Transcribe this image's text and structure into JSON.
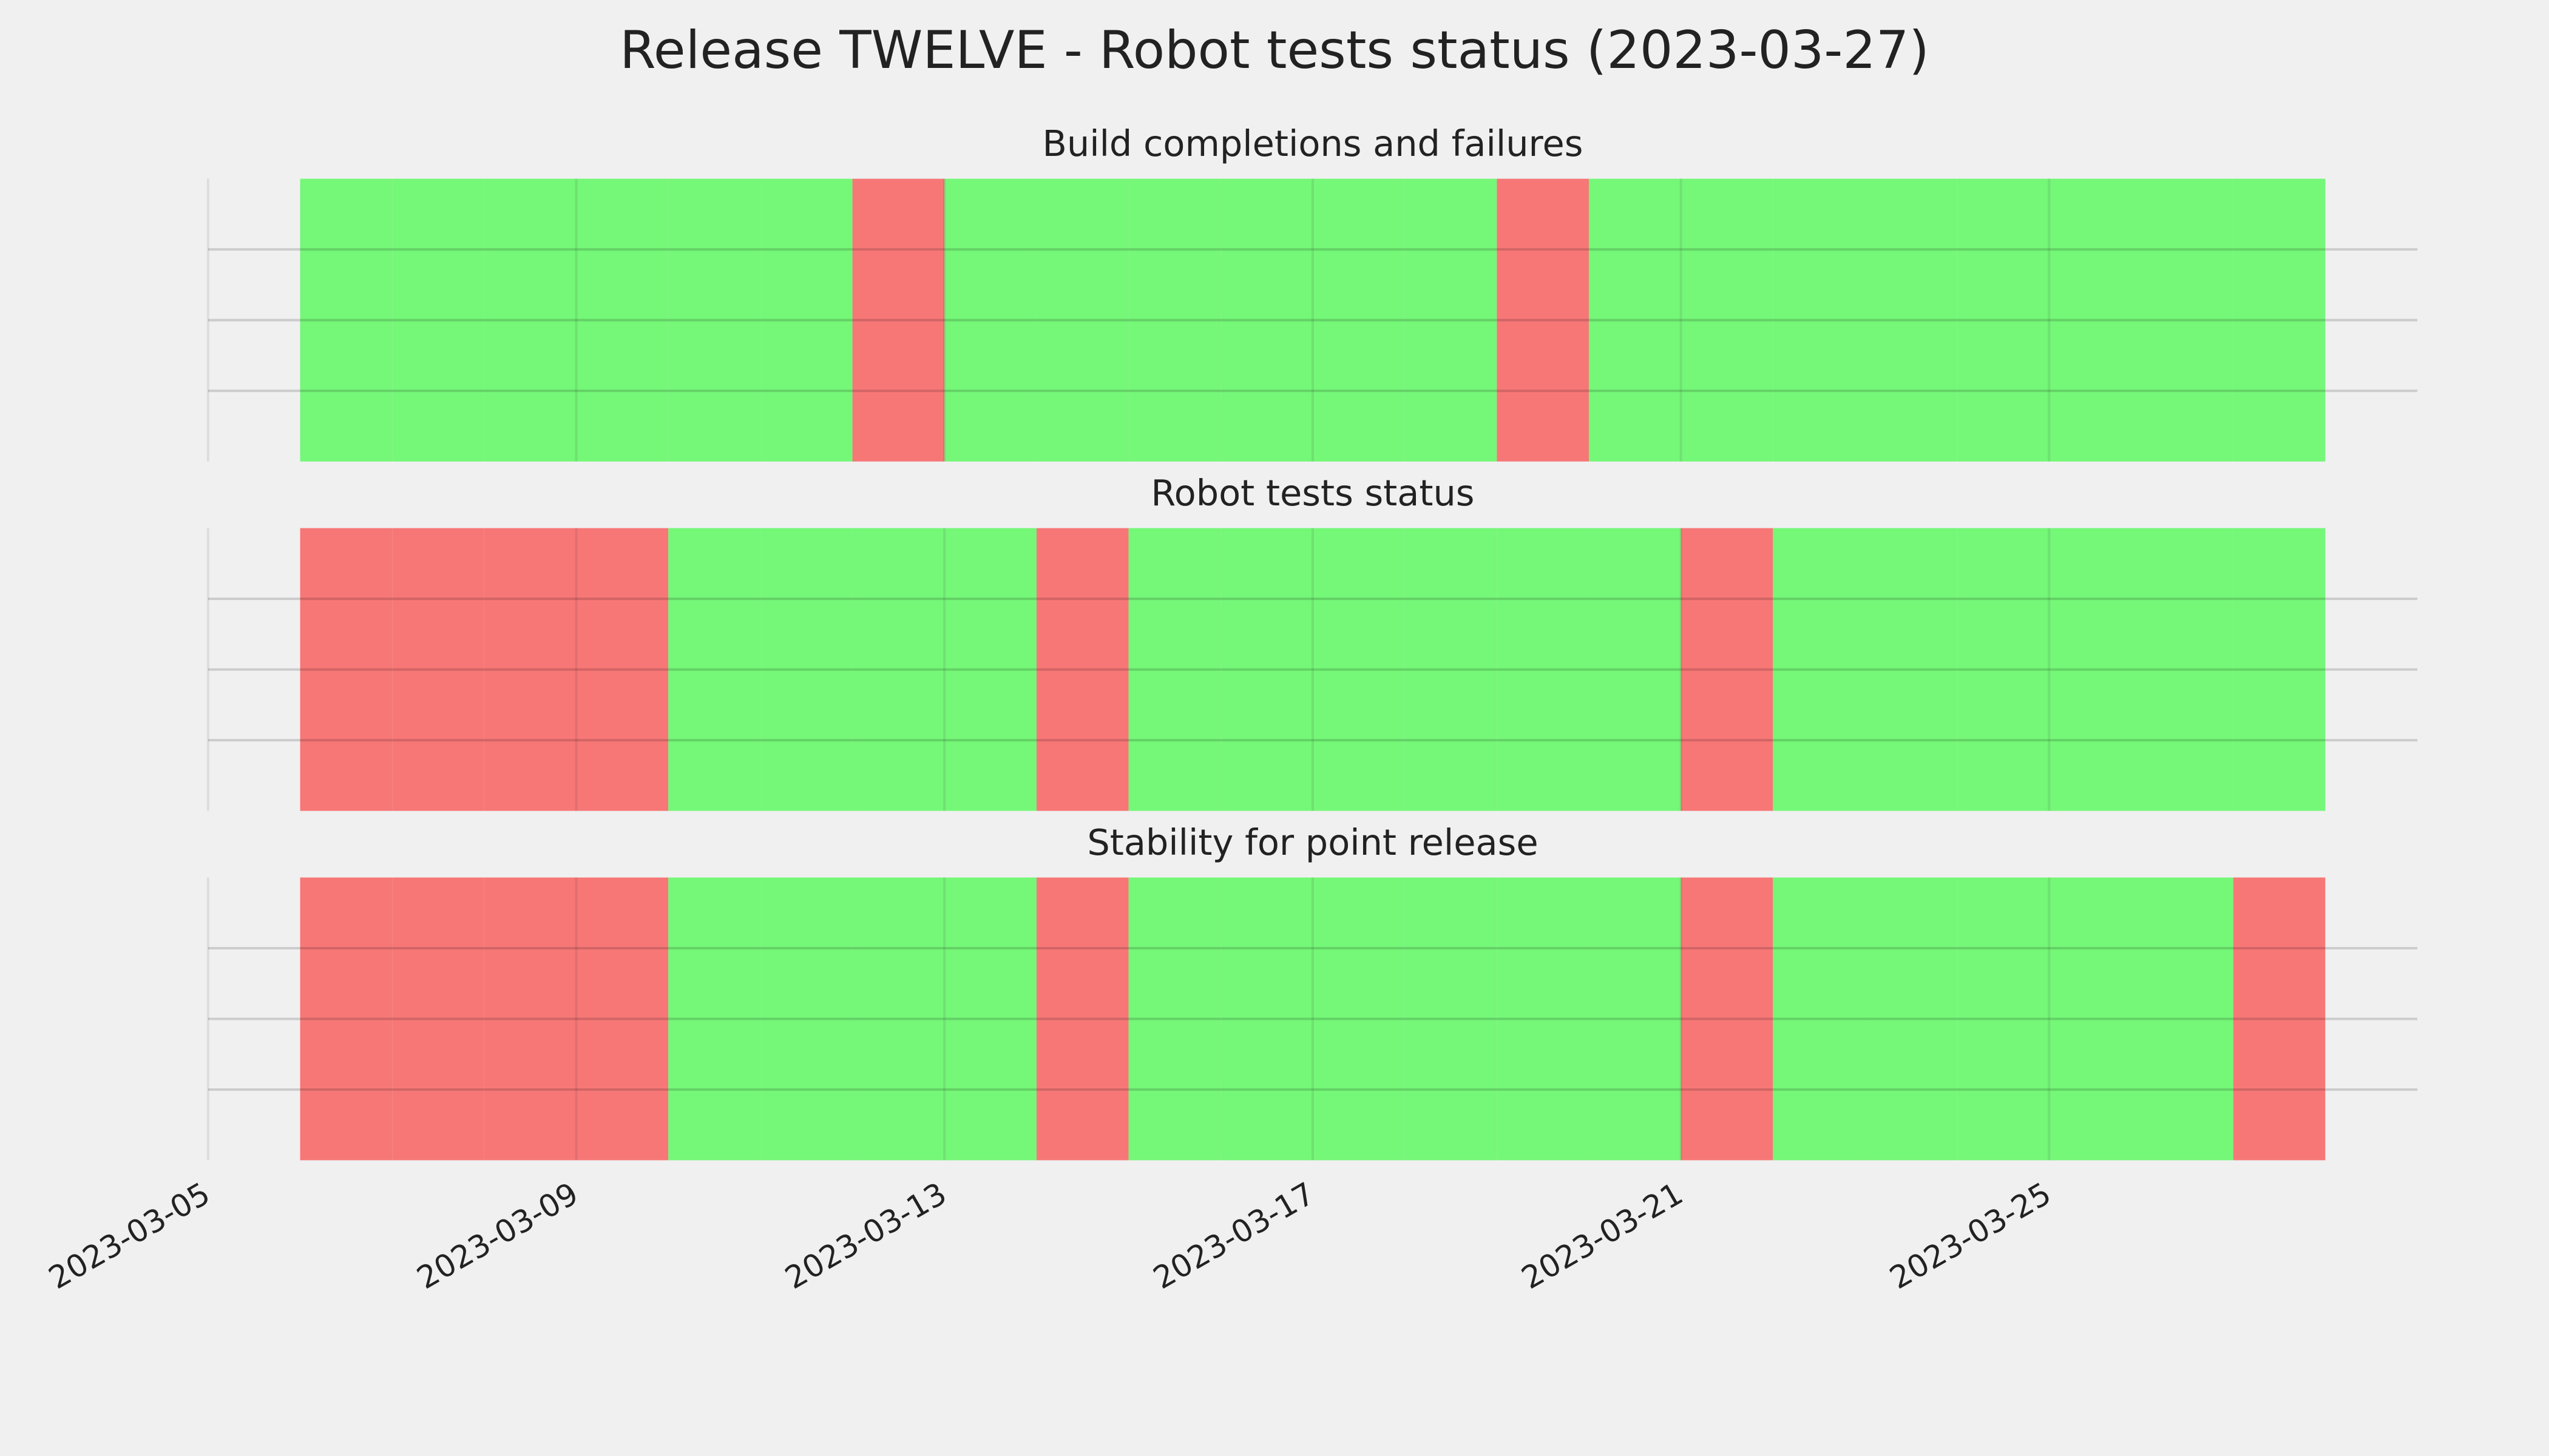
{
  "chart_data": {
    "type": "timeline",
    "title": "Release TWELVE - Robot tests status (2023-03-27)",
    "xlim": [
      "2023-03-05",
      "2023-03-29"
    ],
    "xticks": [
      "2023-03-05",
      "2023-03-09",
      "2023-03-13",
      "2023-03-17",
      "2023-03-21",
      "2023-03-25"
    ],
    "ylim": [
      0,
      1
    ],
    "ygrid": [
      0.25,
      0.5,
      0.75
    ],
    "grid": true,
    "pass_color": "#75f778",
    "fail_color": "#f77777",
    "panels": [
      {
        "title": "Build completions and failures",
        "categories": [
          "2023-03-06",
          "2023-03-07",
          "2023-03-08",
          "2023-03-09",
          "2023-03-10",
          "2023-03-11",
          "2023-03-12",
          "2023-03-13",
          "2023-03-14",
          "2023-03-15",
          "2023-03-16",
          "2023-03-17",
          "2023-03-18",
          "2023-03-19",
          "2023-03-20",
          "2023-03-21",
          "2023-03-22",
          "2023-03-23",
          "2023-03-24",
          "2023-03-25",
          "2023-03-26",
          "2023-03-27"
        ],
        "values": [
          1,
          1,
          1,
          1,
          1,
          1,
          0,
          1,
          1,
          1,
          1,
          1,
          1,
          0,
          1,
          1,
          1,
          1,
          1,
          1,
          1,
          1
        ]
      },
      {
        "title": "Robot tests status",
        "categories": [
          "2023-03-06",
          "2023-03-07",
          "2023-03-08",
          "2023-03-09",
          "2023-03-10",
          "2023-03-11",
          "2023-03-12",
          "2023-03-13",
          "2023-03-14",
          "2023-03-15",
          "2023-03-16",
          "2023-03-17",
          "2023-03-18",
          "2023-03-19",
          "2023-03-20",
          "2023-03-21",
          "2023-03-22",
          "2023-03-23",
          "2023-03-24",
          "2023-03-25",
          "2023-03-26",
          "2023-03-27"
        ],
        "values": [
          0,
          0,
          0,
          0,
          1,
          1,
          1,
          1,
          0,
          1,
          1,
          1,
          1,
          1,
          1,
          0,
          1,
          1,
          1,
          1,
          1,
          1
        ]
      },
      {
        "title": "Stability for point release",
        "categories": [
          "2023-03-06",
          "2023-03-07",
          "2023-03-08",
          "2023-03-09",
          "2023-03-10",
          "2023-03-11",
          "2023-03-12",
          "2023-03-13",
          "2023-03-14",
          "2023-03-15",
          "2023-03-16",
          "2023-03-17",
          "2023-03-18",
          "2023-03-19",
          "2023-03-20",
          "2023-03-21",
          "2023-03-22",
          "2023-03-23",
          "2023-03-24",
          "2023-03-25",
          "2023-03-26",
          "2023-03-27"
        ],
        "values": [
          0,
          0,
          0,
          0,
          1,
          1,
          1,
          1,
          0,
          1,
          1,
          1,
          1,
          1,
          1,
          0,
          1,
          1,
          1,
          1,
          1,
          0
        ]
      }
    ]
  }
}
